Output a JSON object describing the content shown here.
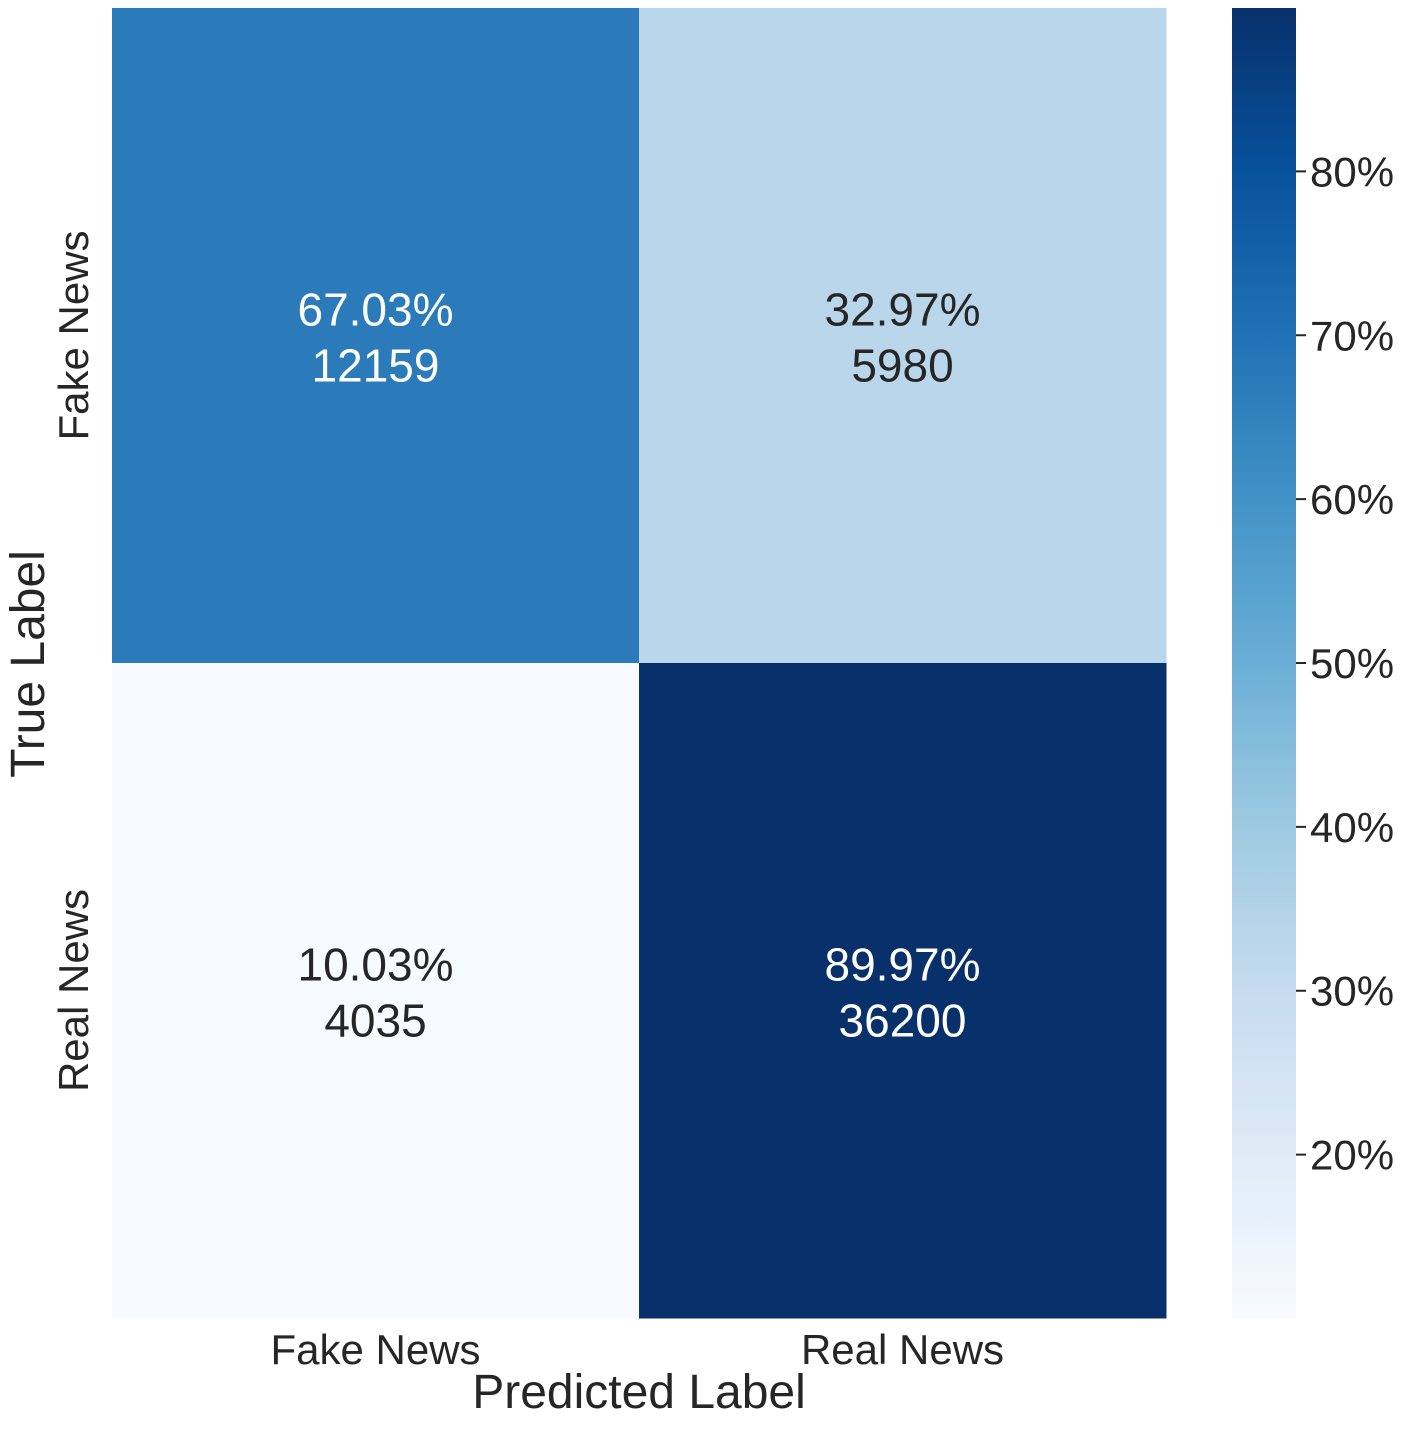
{
  "chart_data": {
    "type": "heatmap",
    "title": "",
    "xlabel": "Predicted Label",
    "ylabel": "True Label",
    "x_categories": [
      "Fake News",
      "Real News"
    ],
    "y_categories": [
      "Fake News",
      "Real News"
    ],
    "cells": [
      [
        {
          "percent": 67.03,
          "percent_label": "67.03%",
          "count": 12159,
          "count_label": "12159"
        },
        {
          "percent": 32.97,
          "percent_label": "32.97%",
          "count": 5980,
          "count_label": "5980"
        }
      ],
      [
        {
          "percent": 10.03,
          "percent_label": "10.03%",
          "count": 4035,
          "count_label": "4035"
        },
        {
          "percent": 89.97,
          "percent_label": "89.97%",
          "count": 36200,
          "count_label": "36200"
        }
      ]
    ],
    "colormap": "Blues",
    "colorbar": {
      "range": [
        10.03,
        89.97
      ],
      "ticks": [
        20,
        30,
        40,
        50,
        60,
        70,
        80
      ],
      "tick_labels": [
        "20%",
        "30%",
        "40%",
        "50%",
        "60%",
        "70%",
        "80%"
      ]
    },
    "grid": false
  }
}
